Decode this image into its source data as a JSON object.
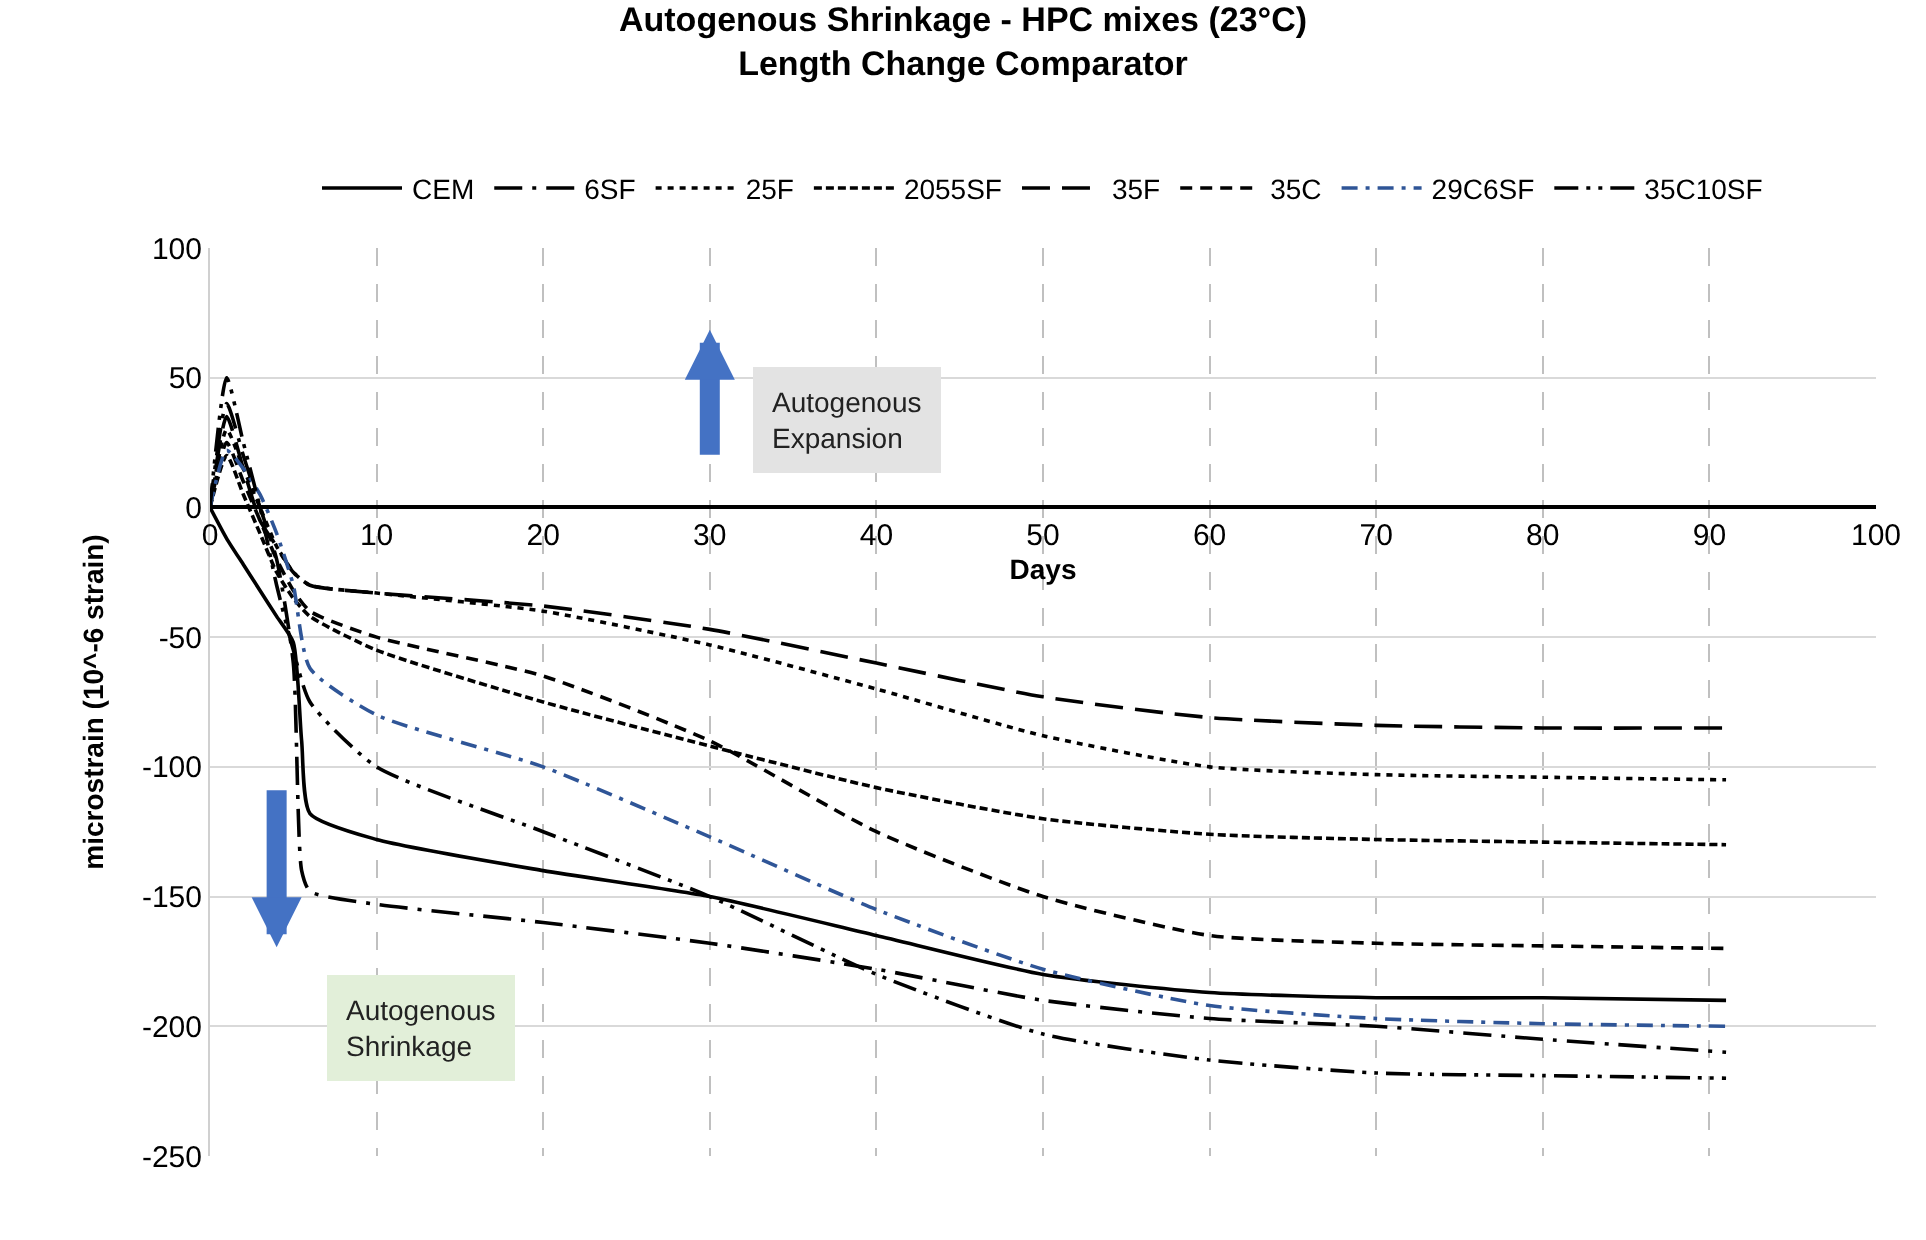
{
  "chart_data": {
    "type": "line",
    "title": "Autogenous Shrinkage - HPC mixes (23°C)",
    "subtitle": "Length Change Comparator",
    "xlabel": "Days",
    "ylabel": "microstrain (10^-6 strain)",
    "xlim": [
      0,
      100
    ],
    "xticks": [
      0,
      10,
      20,
      30,
      40,
      50,
      60,
      70,
      80,
      90,
      100
    ],
    "ylim": [
      -250,
      100
    ],
    "yticks": [
      -250,
      -200,
      -150,
      -100,
      -50,
      0,
      50,
      100
    ],
    "grid": true,
    "legend": "top",
    "marker": "none",
    "annotations": [
      "Autogenous Expansion",
      "Autogenous Shrinkage"
    ],
    "x": [
      0,
      1,
      2,
      3,
      4,
      5,
      6,
      10,
      20,
      30,
      40,
      50,
      60,
      70,
      80,
      91
    ],
    "series": [
      {
        "name": "CEM",
        "color": "#000000",
        "line_style": "solid",
        "x": [
          0,
          1,
          2,
          3,
          4,
          5,
          5.5,
          6,
          10,
          20,
          30,
          40,
          50,
          60,
          70,
          80,
          91
        ],
        "values": [
          0,
          -12,
          -22,
          -32,
          -42,
          -52,
          -90,
          -118,
          -128,
          -140,
          -150,
          -165,
          -180,
          -187,
          -189,
          -189,
          -190
        ]
      },
      {
        "name": "6SF",
        "color": "#000000",
        "line_style": "long dashdot",
        "x": [
          0,
          1,
          2,
          3,
          4,
          5,
          5.5,
          6,
          10,
          20,
          30,
          40,
          50,
          60,
          70,
          80,
          91
        ],
        "values": [
          0,
          40,
          20,
          0,
          -20,
          -60,
          -140,
          -148,
          -153,
          -160,
          -168,
          -178,
          -190,
          -197,
          -200,
          -205,
          -210
        ]
      },
      {
        "name": "25F",
        "color": "#000000",
        "line_style": "dotted",
        "values": [
          0,
          30,
          15,
          0,
          -15,
          -25,
          -30,
          -33,
          -40,
          -53,
          -70,
          -88,
          -100,
          -103,
          -104,
          -105
        ]
      },
      {
        "name": "2055SF",
        "color": "#000000",
        "line_style": "short dashed",
        "values": [
          0,
          20,
          5,
          -10,
          -25,
          -35,
          -42,
          -55,
          -75,
          -92,
          -108,
          -120,
          -126,
          -128,
          -129,
          -130
        ]
      },
      {
        "name": "35F",
        "color": "#000000",
        "line_style": "long dashed",
        "values": [
          0,
          35,
          15,
          -5,
          -15,
          -25,
          -30,
          -33,
          -38,
          -47,
          -60,
          -73,
          -81,
          -84,
          -85,
          -85
        ]
      },
      {
        "name": "35C",
        "color": "#000000",
        "line_style": "dashed",
        "values": [
          0,
          25,
          10,
          -5,
          -20,
          -32,
          -40,
          -50,
          -65,
          -90,
          -125,
          -150,
          -165,
          -168,
          -169,
          -170
        ]
      },
      {
        "name": "29C6SF",
        "color": "#2f5597",
        "line_style": "dashdot",
        "values": [
          0,
          22,
          15,
          5,
          -10,
          -30,
          -62,
          -80,
          -100,
          -127,
          -155,
          -178,
          -192,
          -197,
          -199,
          -200
        ]
      },
      {
        "name": "35C10SF",
        "color": "#000000",
        "line_style": "dashdotdot",
        "values": [
          0,
          50,
          25,
          0,
          -30,
          -55,
          -75,
          -100,
          -125,
          -150,
          -180,
          -203,
          -213,
          -218,
          -219,
          -220
        ]
      }
    ]
  }
}
